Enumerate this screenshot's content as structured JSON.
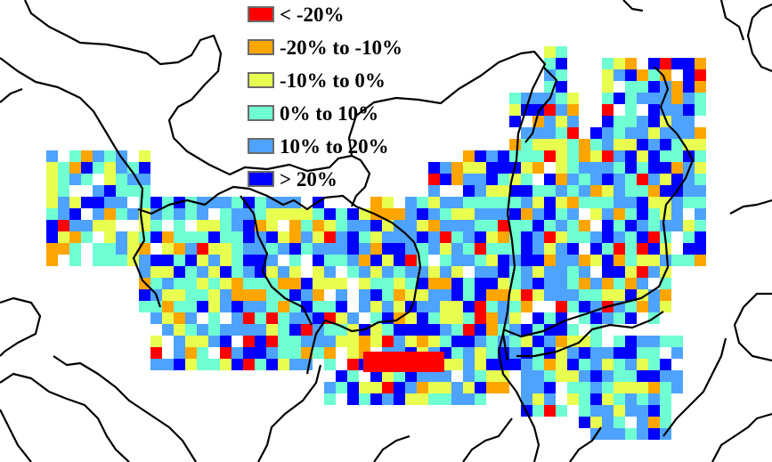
{
  "legend": {
    "items": [
      {
        "label": "< -20%",
        "color": "#ff0000"
      },
      {
        "label": "-20% to -10%",
        "color": "#ffa500"
      },
      {
        "label": "-10% to 0%",
        "color": "#e8ff50"
      },
      {
        "label": "0% to 10%",
        "color": "#6fffd2"
      },
      {
        "label": "10% to 20%",
        "color": "#4da3ff"
      },
      {
        "label": "> 20%",
        "color": "#0000ff"
      }
    ]
  },
  "map": {
    "boundary_color": "#000000",
    "background_color": "#ffffff"
  }
}
